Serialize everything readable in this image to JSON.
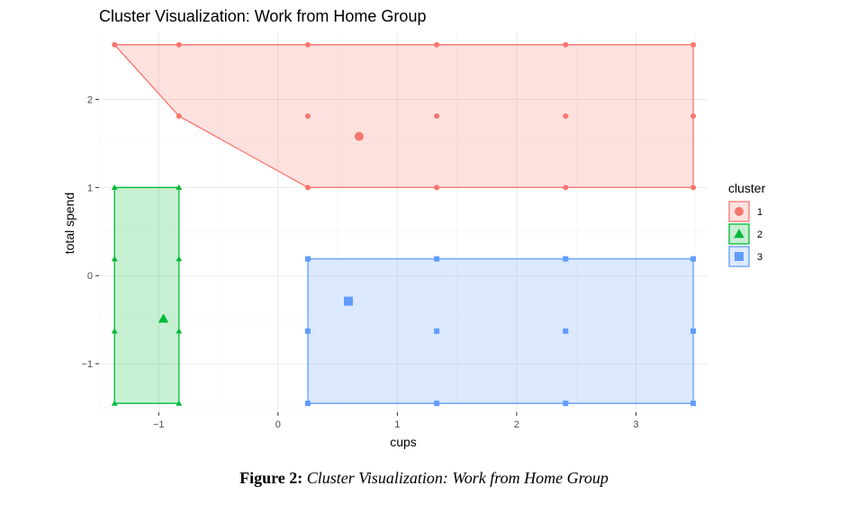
{
  "chart_data": {
    "type": "scatter",
    "title": "Cluster Visualization: Work from Home Group",
    "xlabel": "cups",
    "ylabel": "total spend",
    "xlim": [
      -1.5,
      3.6
    ],
    "ylim": [
      -1.55,
      2.75
    ],
    "x_ticks": [
      -1,
      0,
      1,
      2,
      3
    ],
    "y_ticks": [
      -1,
      0,
      1,
      2
    ],
    "x_tick_labels": [
      "−1",
      "0",
      "1",
      "2",
      "3"
    ],
    "y_tick_labels": [
      "−1",
      "0",
      "1",
      "2"
    ],
    "grid": true,
    "legend": {
      "title": "cluster",
      "placement": "right"
    },
    "series": [
      {
        "name": "1",
        "color": "#F8766D",
        "marker": "circle",
        "points": [
          [
            -1.37,
            2.62
          ],
          [
            -0.83,
            2.62
          ],
          [
            0.25,
            2.62
          ],
          [
            1.33,
            2.62
          ],
          [
            2.41,
            2.62
          ],
          [
            3.48,
            2.62
          ],
          [
            -0.83,
            1.81
          ],
          [
            0.25,
            1.81
          ],
          [
            1.33,
            1.81
          ],
          [
            2.41,
            1.81
          ],
          [
            3.48,
            1.81
          ],
          [
            0.25,
            1.0
          ],
          [
            1.33,
            1.0
          ],
          [
            2.41,
            1.0
          ],
          [
            3.48,
            1.0
          ]
        ],
        "hull": [
          [
            -1.37,
            2.62
          ],
          [
            3.48,
            2.62
          ],
          [
            3.48,
            1.0
          ],
          [
            0.25,
            1.0
          ],
          [
            -0.83,
            1.81
          ]
        ],
        "centroid": [
          0.68,
          1.58
        ]
      },
      {
        "name": "2",
        "color": "#00BA38",
        "marker": "triangle",
        "points": [
          [
            -1.37,
            1.0
          ],
          [
            -0.83,
            1.0
          ],
          [
            -1.37,
            0.19
          ],
          [
            -0.83,
            0.19
          ],
          [
            -1.37,
            -0.63
          ],
          [
            -0.83,
            -0.63
          ],
          [
            -1.37,
            -1.45
          ],
          [
            -0.83,
            -1.45
          ]
        ],
        "hull": [
          [
            -1.37,
            1.0
          ],
          [
            -0.83,
            1.0
          ],
          [
            -0.83,
            -1.45
          ],
          [
            -1.37,
            -1.45
          ]
        ],
        "centroid": [
          -0.96,
          -0.49
        ]
      },
      {
        "name": "3",
        "color": "#619CFF",
        "marker": "square",
        "points": [
          [
            0.25,
            0.19
          ],
          [
            1.33,
            0.19
          ],
          [
            2.41,
            0.19
          ],
          [
            3.48,
            0.19
          ],
          [
            0.25,
            -0.63
          ],
          [
            1.33,
            -0.63
          ],
          [
            2.41,
            -0.63
          ],
          [
            3.48,
            -0.63
          ],
          [
            0.25,
            -1.45
          ],
          [
            1.33,
            -1.45
          ],
          [
            2.41,
            -1.45
          ],
          [
            3.48,
            -1.45
          ]
        ],
        "hull": [
          [
            0.25,
            0.19
          ],
          [
            3.48,
            0.19
          ],
          [
            3.48,
            -1.45
          ],
          [
            0.25,
            -1.45
          ]
        ],
        "centroid": [
          0.59,
          -0.29
        ]
      }
    ]
  },
  "caption": {
    "label": "Figure 2:",
    "text": "Cluster Visualization: Work from Home Group"
  }
}
